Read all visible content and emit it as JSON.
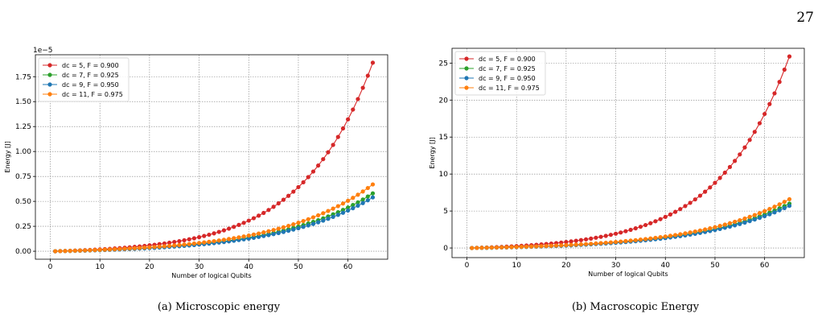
{
  "page_number": "27",
  "chart_data": [
    {
      "type": "line",
      "caption": "(a) Microscopic energy",
      "xlabel": "Number of logical Qubits",
      "ylabel": "Energy [J]",
      "offset_text": "1e−5",
      "xlim": [
        -3,
        68
      ],
      "ylim": [
        -0.08,
        1.97
      ],
      "xticks": [
        0,
        10,
        20,
        30,
        40,
        50,
        60
      ],
      "yticks": [
        0.0,
        0.25,
        0.5,
        0.75,
        1.0,
        1.25,
        1.5,
        1.75
      ],
      "ytick_labels": [
        "0.00",
        "0.25",
        "0.50",
        "0.75",
        "1.00",
        "1.25",
        "1.50",
        "1.75"
      ],
      "grid": true,
      "legend": "top-left",
      "x": [
        1,
        65
      ],
      "series": [
        {
          "name": "dc = 5, F = 0.900",
          "color": "#d62728",
          "start": 0.0,
          "end": 1.89,
          "k": 0.0705
        },
        {
          "name": "dc = 7, F = 0.925",
          "color": "#2ca02c",
          "start": 0.0,
          "end": 0.58,
          "k": 0.054
        },
        {
          "name": "dc = 9, F = 0.950",
          "color": "#1f77b4",
          "start": 0.0,
          "end": 0.54,
          "k": 0.054
        },
        {
          "name": "dc = 11, F = 0.975",
          "color": "#ff7f0e",
          "start": 0.0,
          "end": 0.67,
          "k": 0.054
        }
      ]
    },
    {
      "type": "line",
      "caption": "(b) Macroscopic Energy",
      "xlabel": "Number of logical Qubits",
      "ylabel": "Energy [J]",
      "offset_text": "",
      "xlim": [
        -3,
        68
      ],
      "ylim": [
        -1.3,
        27
      ],
      "xticks": [
        0,
        10,
        20,
        30,
        40,
        50,
        60
      ],
      "yticks": [
        0,
        5,
        10,
        15,
        20,
        25
      ],
      "ytick_labels": [
        "0",
        "5",
        "10",
        "15",
        "20",
        "25"
      ],
      "grid": true,
      "legend": "top-left",
      "x": [
        1,
        65
      ],
      "series": [
        {
          "name": "dc = 5, F = 0.900",
          "color": "#d62728",
          "start": 0.0,
          "end": 25.9,
          "k": 0.0705
        },
        {
          "name": "dc = 7, F = 0.925",
          "color": "#2ca02c",
          "start": 0.0,
          "end": 6.0,
          "k": 0.054
        },
        {
          "name": "dc = 9, F = 0.950",
          "color": "#1f77b4",
          "start": 0.0,
          "end": 5.7,
          "k": 0.054
        },
        {
          "name": "dc = 11, F = 0.975",
          "color": "#ff7f0e",
          "start": 0.0,
          "end": 6.6,
          "k": 0.054
        }
      ]
    }
  ]
}
